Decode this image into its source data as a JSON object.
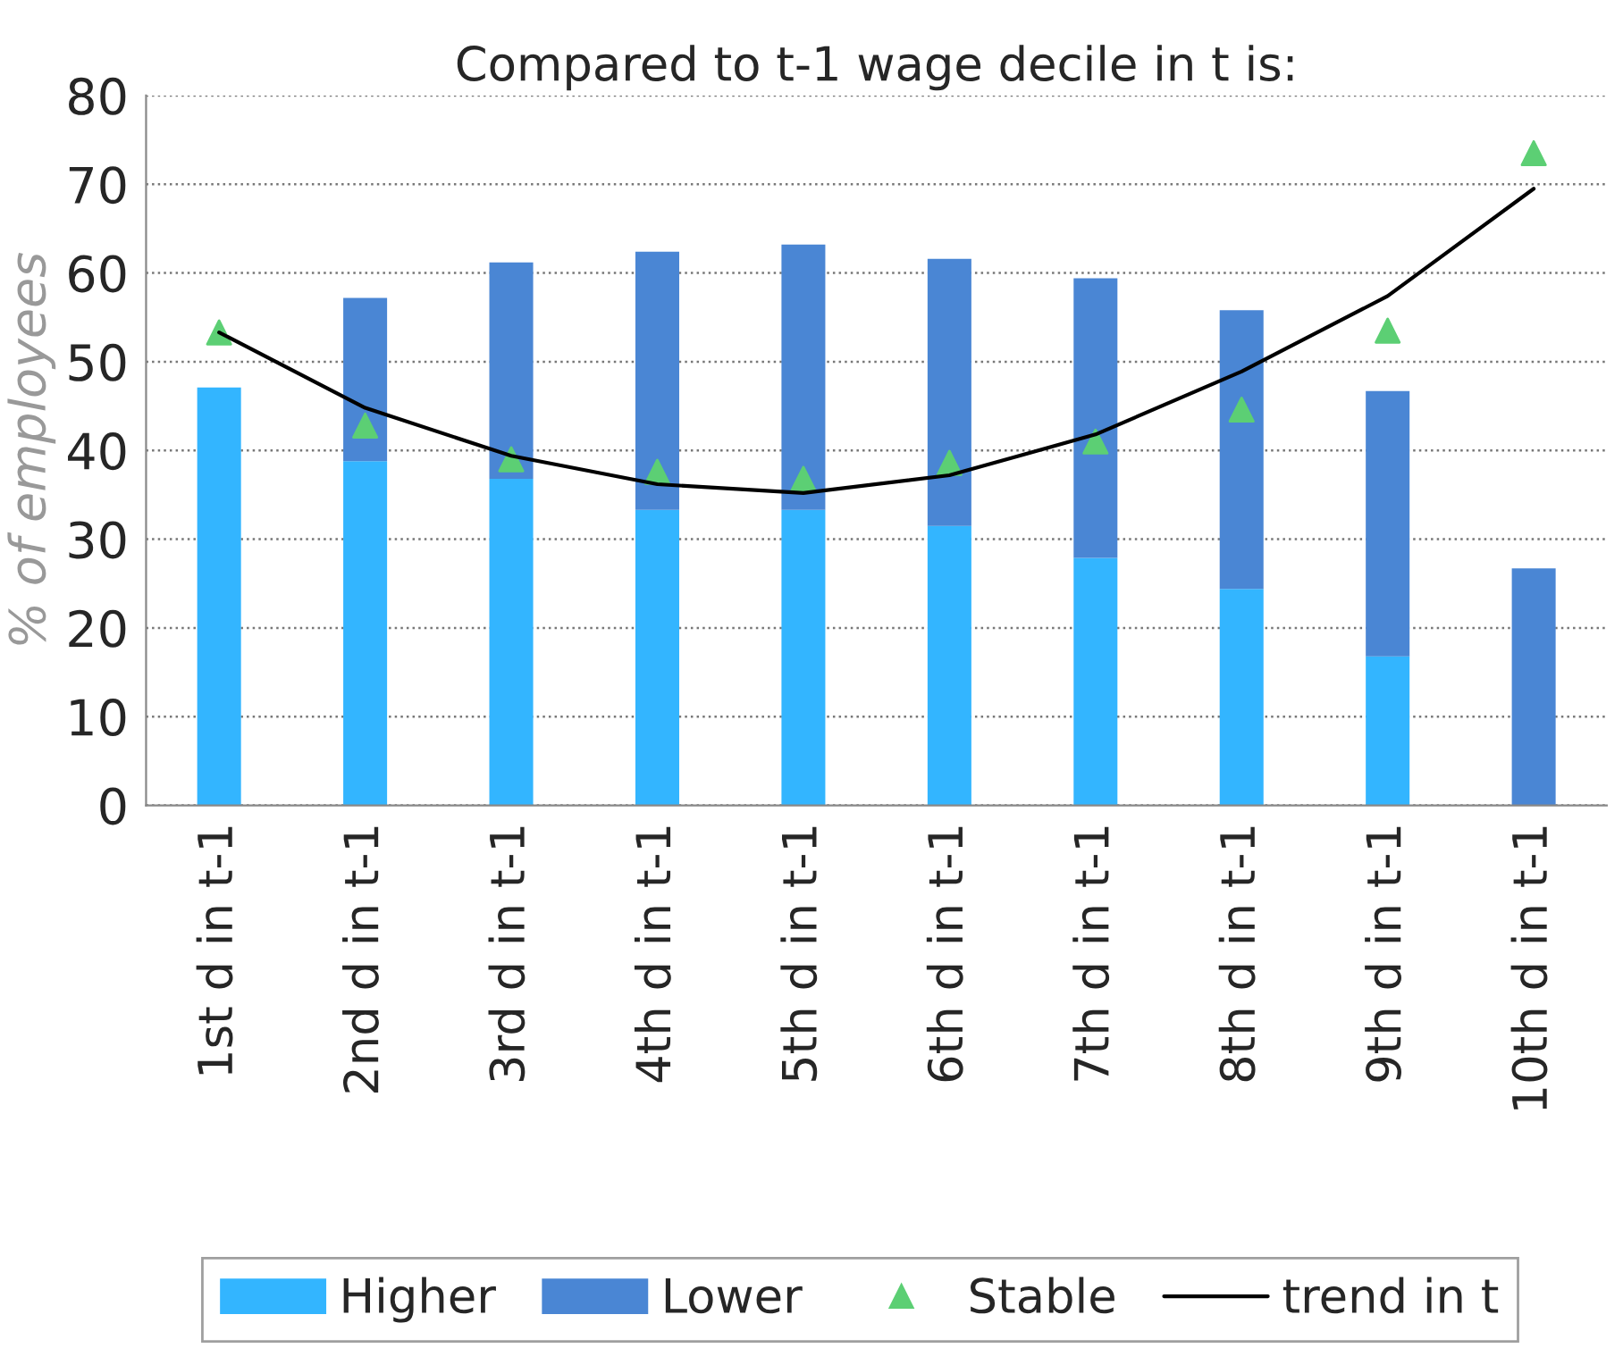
{
  "chart_data": {
    "type": "bar",
    "title": "Compared to t-1 wage decile in t is:",
    "ylabel": "% of employees",
    "categories": [
      "1st d in t-1",
      "2nd d in t-1",
      "3rd d in t-1",
      "4th d in t-1",
      "5th d in t-1",
      "6th d in t-1",
      "7th d in t-1",
      "8th d in t-1",
      "9th d in t-1",
      "10th d in t-1"
    ],
    "stacked": true,
    "series": [
      {
        "name": "Higher",
        "color": "#33b5ff",
        "values": [
          47.1,
          38.8,
          36.8,
          33.3,
          33.3,
          31.5,
          27.9,
          24.4,
          16.8,
          null
        ]
      },
      {
        "name": "Lower",
        "color": "#4a86d4",
        "values": [
          null,
          18.4,
          24.4,
          29.1,
          29.9,
          30.1,
          31.5,
          31.4,
          29.9,
          26.7
        ]
      },
      {
        "name": "Stable",
        "type": "scatter",
        "marker": "triangle",
        "color": "#5ccf74",
        "values": [
          53.3,
          42.8,
          39.0,
          37.6,
          36.8,
          38.6,
          41.0,
          44.6,
          53.5,
          73.5
        ]
      },
      {
        "name": "trend in t",
        "type": "line",
        "marker": "none",
        "line_style": "solid",
        "color": "#000000",
        "values": [
          53.3,
          44.8,
          39.4,
          36.2,
          35.2,
          37.2,
          41.8,
          48.9,
          57.4,
          69.5
        ]
      }
    ],
    "ylim": [
      0,
      80
    ],
    "yticks": [
      0,
      10,
      20,
      30,
      40,
      50,
      60,
      70,
      80
    ],
    "grid": "y",
    "legend": "bottom"
  }
}
